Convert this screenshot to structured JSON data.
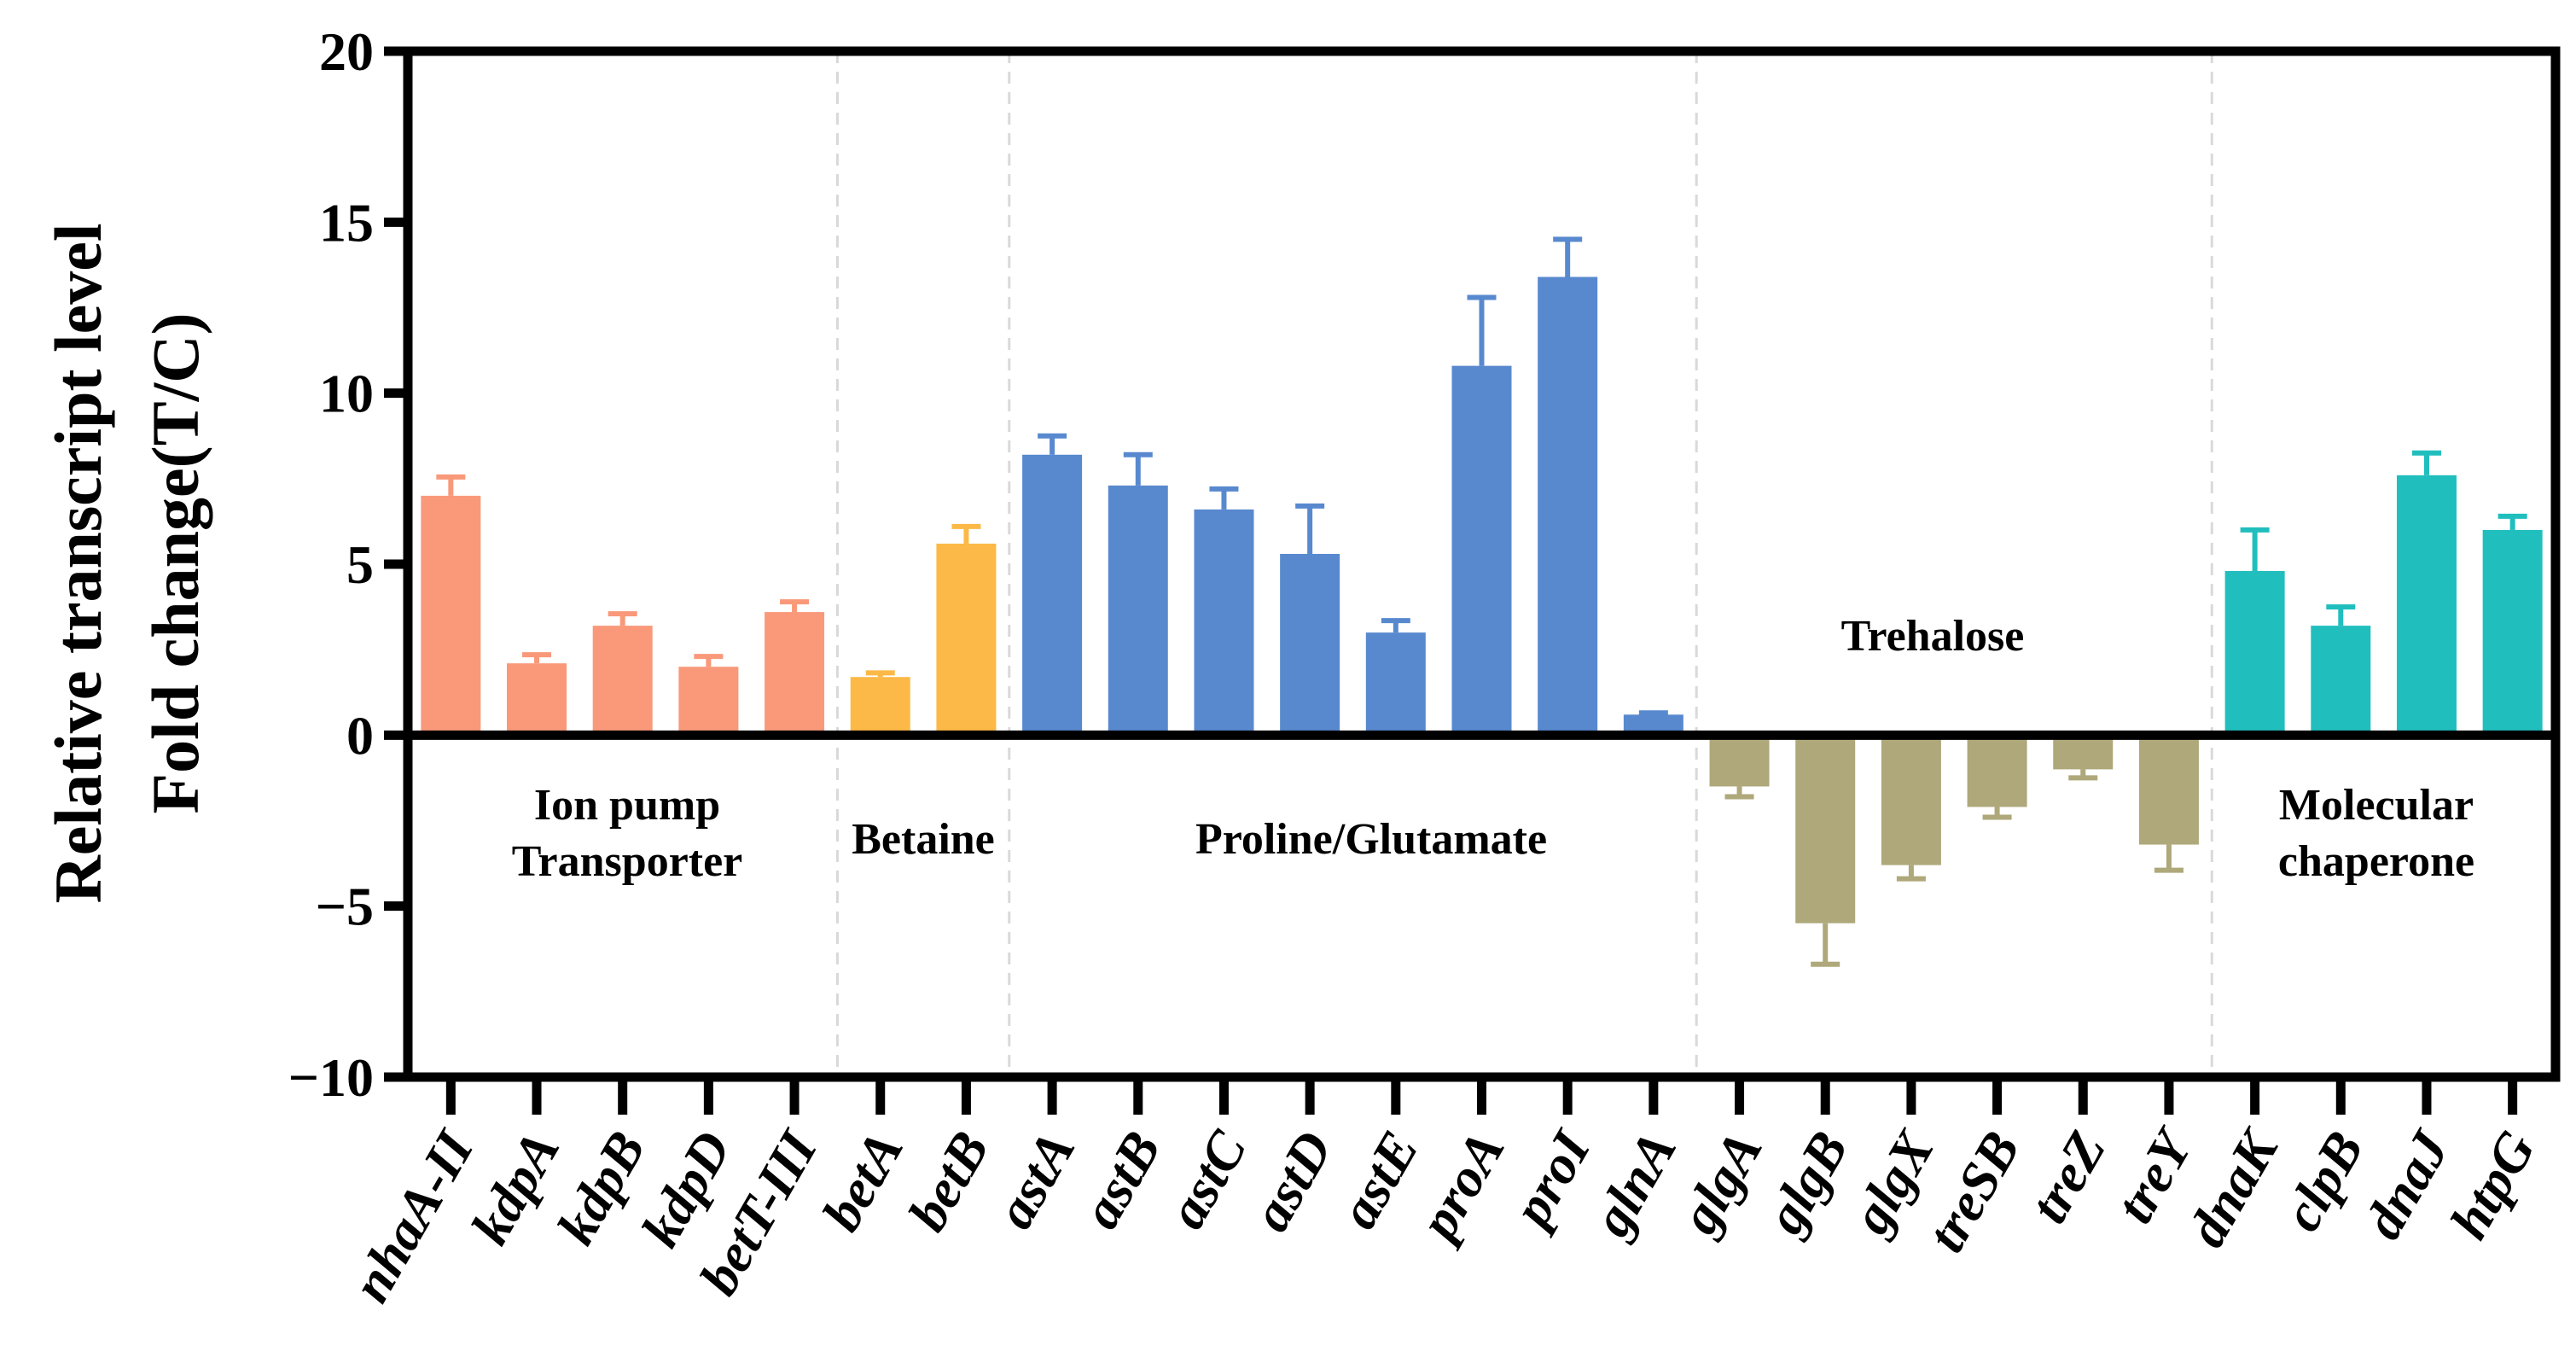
{
  "chart_data": {
    "type": "bar",
    "ylabel_lines": [
      "Relative transcript level",
      "Fold change(T/C)"
    ],
    "ylim": [
      -10,
      20
    ],
    "yticks": [
      20,
      15,
      10,
      5,
      0,
      -5,
      -10
    ],
    "ytick_labels": [
      "20",
      "15",
      "10",
      "5",
      "0",
      "−5",
      "−10"
    ],
    "categories": [
      "nhaA-II",
      "kdpA",
      "kdpB",
      "kdpD",
      "betT-III",
      "betA",
      "betB",
      "astA",
      "astB",
      "astC",
      "astD",
      "astE",
      "proA",
      "proI",
      "glnA",
      "glgA",
      "glgB",
      "glgX",
      "treSB",
      "treZ",
      "treY",
      "dnaK",
      "clpB",
      "dnaJ",
      "htpG"
    ],
    "values": [
      7.0,
      2.1,
      3.2,
      2.0,
      3.6,
      1.7,
      5.6,
      8.2,
      7.3,
      6.6,
      5.3,
      3.0,
      10.8,
      13.4,
      0.6,
      -1.5,
      -5.5,
      -3.8,
      -2.1,
      -1.0,
      -3.2,
      4.8,
      3.2,
      7.6,
      6.0
    ],
    "errors": [
      0.55,
      0.25,
      0.35,
      0.3,
      0.3,
      0.12,
      0.5,
      0.55,
      0.9,
      0.6,
      1.4,
      0.35,
      2.0,
      1.1,
      0.05,
      0.3,
      1.2,
      0.4,
      0.3,
      0.25,
      0.75,
      1.2,
      0.55,
      0.65,
      0.4
    ],
    "groups": [
      {
        "name": "Ion pump Transporter",
        "label_lines": [
          "Ion pump",
          "Transporter"
        ],
        "start": 0,
        "end": 4,
        "color": "#F9997A"
      },
      {
        "name": "Betaine",
        "label_lines": [
          "Betaine"
        ],
        "start": 5,
        "end": 6,
        "color": "#FCB947"
      },
      {
        "name": "Proline/Glutamate",
        "label_lines": [
          "Proline/Glutamate"
        ],
        "start": 7,
        "end": 14,
        "color": "#5889CF"
      },
      {
        "name": "Trehalose",
        "label_lines": [
          "Trehalose"
        ],
        "start": 15,
        "end": 20,
        "color": "#AEA87A"
      },
      {
        "name": "Molecular chaperone",
        "label_lines": [
          "Molecular",
          "chaperone"
        ],
        "start": 21,
        "end": 24,
        "color": "#21BEBE"
      }
    ]
  }
}
